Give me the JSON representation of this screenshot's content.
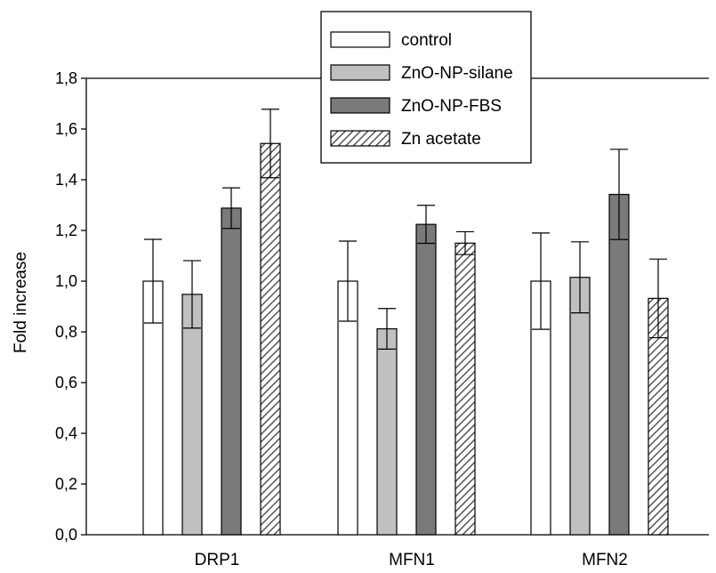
{
  "chart_data": {
    "type": "bar",
    "title": "",
    "xlabel": "",
    "ylabel": "Fold increase",
    "ylim": [
      0,
      1.8
    ],
    "yticks": [
      "0,0",
      "0,2",
      "0,4",
      "0,6",
      "0,8",
      "1,0",
      "1,2",
      "1,4",
      "1,6",
      "1,8"
    ],
    "ytick_values": [
      0,
      0.2,
      0.4,
      0.6,
      0.8,
      1.0,
      1.2,
      1.4,
      1.6,
      1.8
    ],
    "grid": false,
    "legend_position": "top-center",
    "categories": [
      "DRP1",
      "MFN1",
      "MFN2"
    ],
    "series": [
      {
        "name": "control",
        "values": [
          1.0,
          1.0,
          1.0
        ],
        "errors": [
          0.165,
          0.158,
          0.19
        ],
        "fill": "#ffffff",
        "pattern": "none"
      },
      {
        "name": "ZnO-NP-silane",
        "values": [
          0.948,
          0.812,
          1.015
        ],
        "errors": [
          0.133,
          0.08,
          0.14
        ],
        "fill": "#c0c0c0",
        "pattern": "none"
      },
      {
        "name": "ZnO-NP-FBS",
        "values": [
          1.288,
          1.224,
          1.342
        ],
        "errors": [
          0.08,
          0.075,
          0.178
        ],
        "fill": "#7a7a7a",
        "pattern": "none"
      },
      {
        "name": "Zn acetate",
        "values": [
          1.543,
          1.15,
          0.932
        ],
        "errors": [
          0.135,
          0.045,
          0.155
        ],
        "fill": "#ffffff",
        "pattern": "diagonal-hatch"
      }
    ]
  }
}
